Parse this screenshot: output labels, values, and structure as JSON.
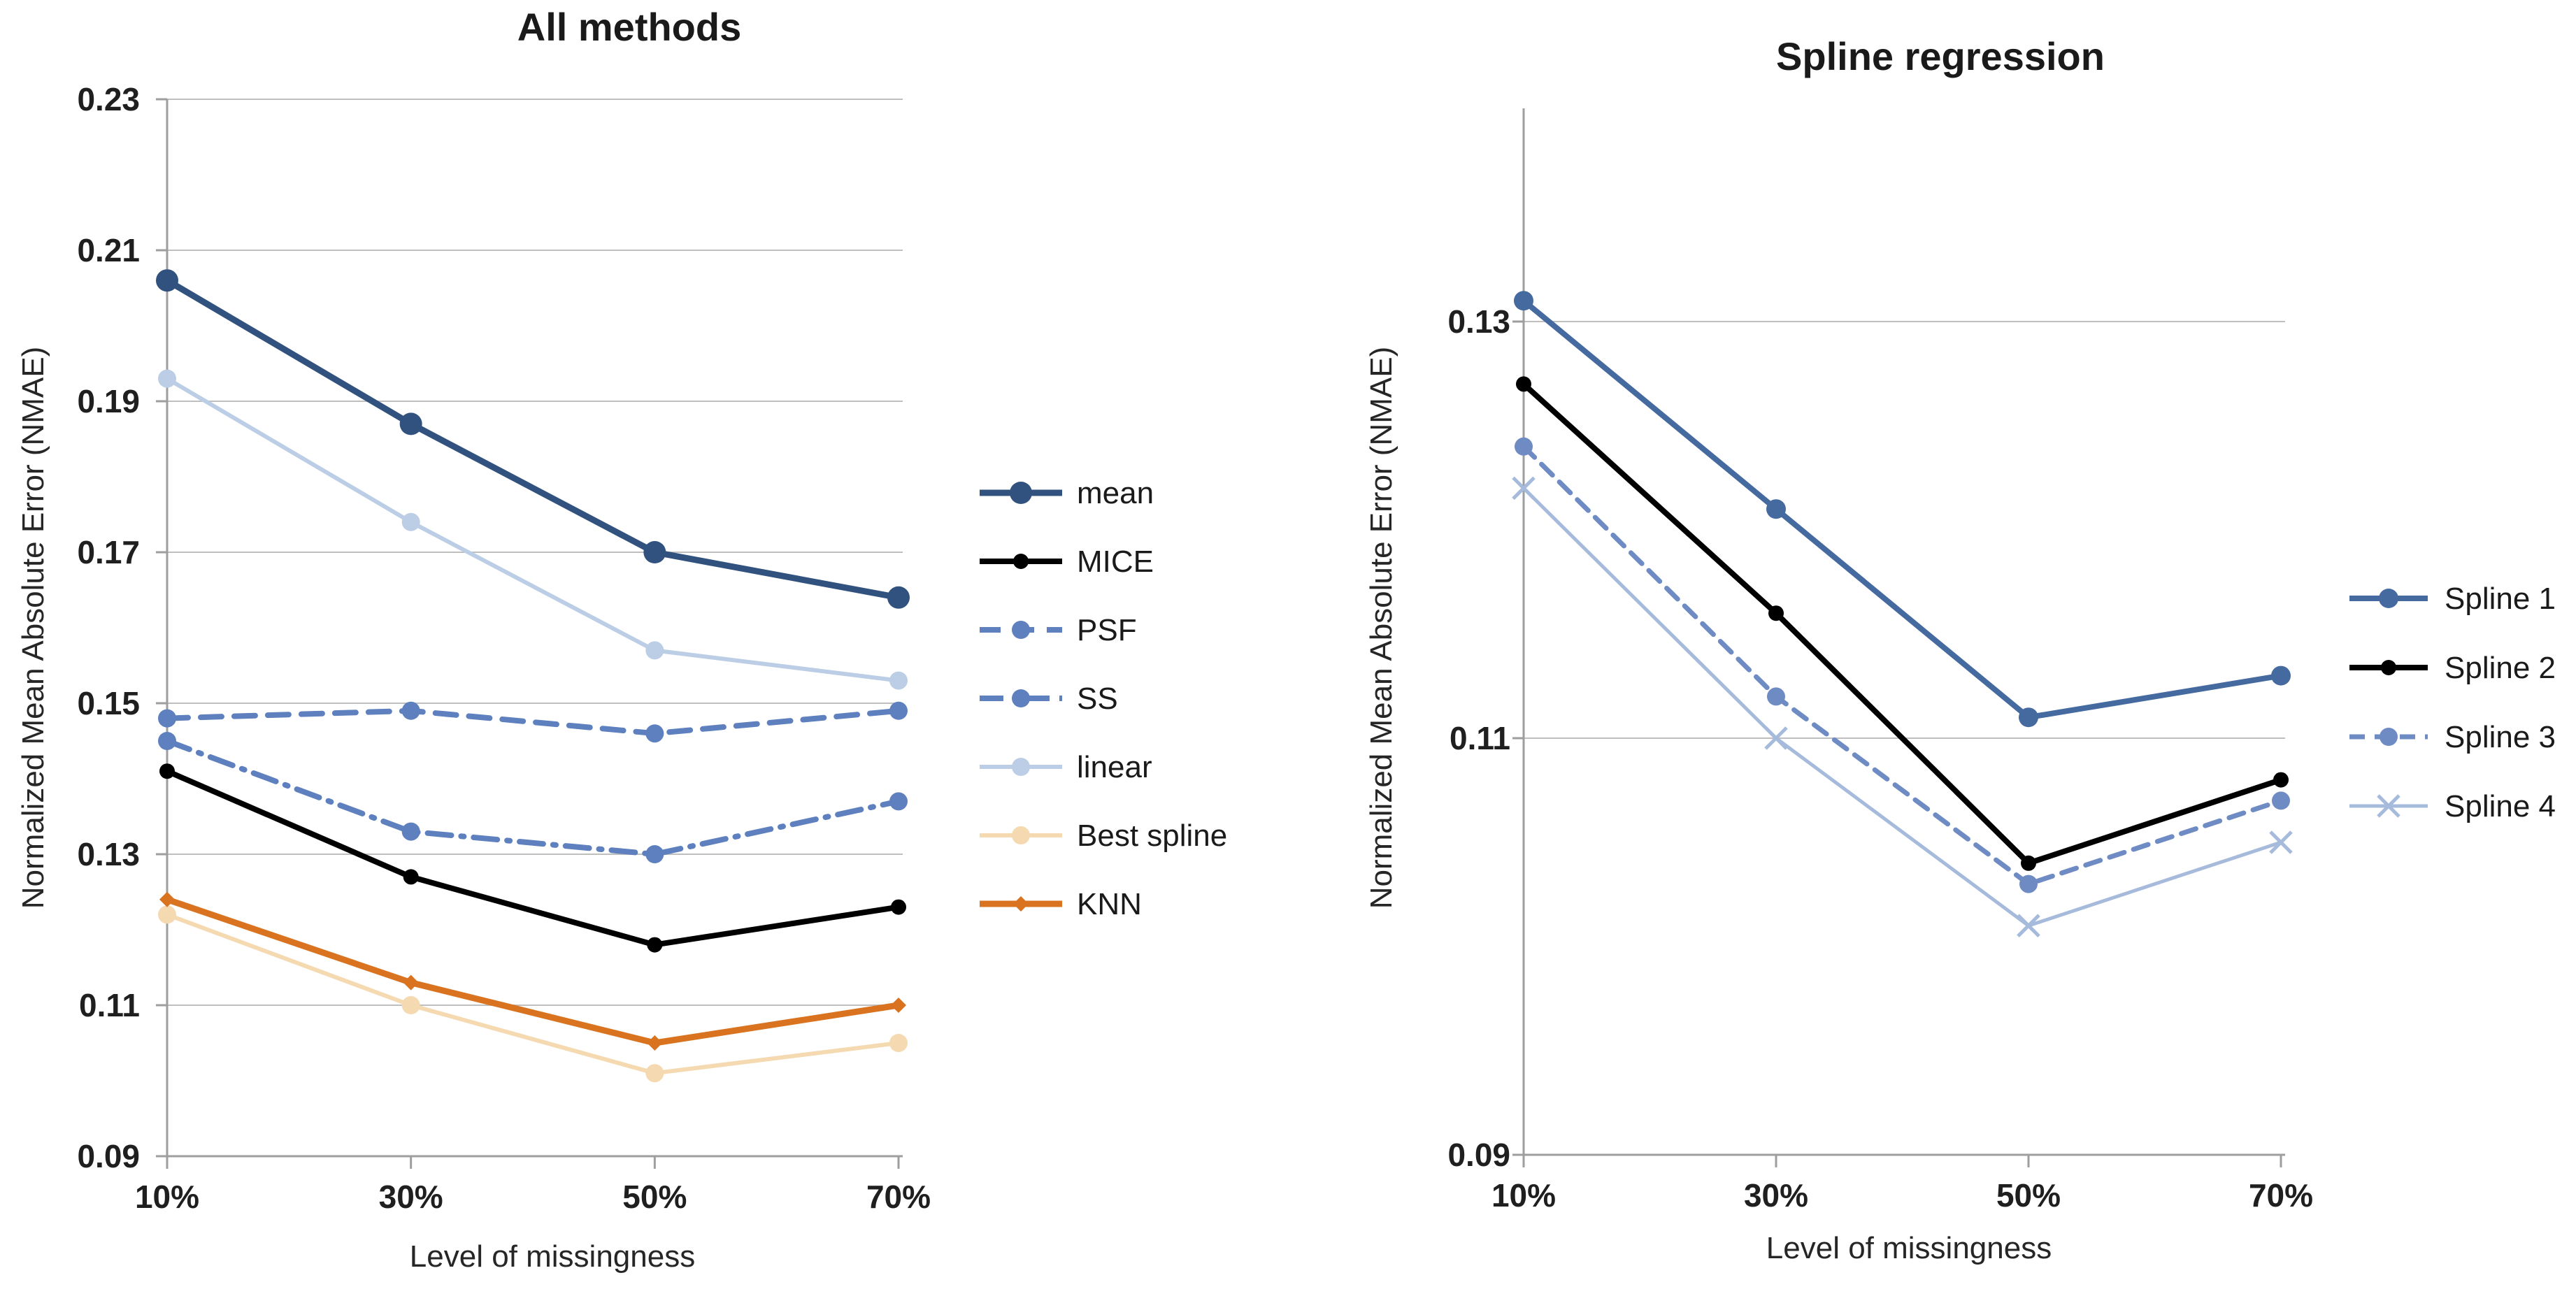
{
  "figure": {
    "background": "#ffffff",
    "grid_color": "#bfbfbf",
    "axis_color": "#9e9e9e"
  },
  "chart_data": [
    {
      "type": "line",
      "title": "All methods",
      "xlabel": "Level of missingness",
      "ylabel": "Normalized Mean Absolute Error (NMAE)",
      "categories": [
        "10%",
        "30%",
        "50%",
        "70%"
      ],
      "y_ticks": [
        "0.23",
        "0.21",
        "0.19",
        "0.17",
        "0.15",
        "0.13",
        "0.11",
        "0.09"
      ],
      "ylim": [
        0.09,
        0.23
      ],
      "grid": true,
      "legend_position": "right",
      "series": [
        {
          "name": "mean",
          "color": "#31527E",
          "dash": null,
          "marker": "circle",
          "marker_size": 16,
          "width": 9,
          "values": [
            0.206,
            0.187,
            0.17,
            0.164
          ]
        },
        {
          "name": "MICE",
          "color": "#000000",
          "dash": null,
          "marker": "circle",
          "marker_size": 11,
          "width": 8,
          "values": [
            0.141,
            0.127,
            0.118,
            0.123
          ]
        },
        {
          "name": "PSF",
          "color": "#5E80BE",
          "dash": "30 18",
          "marker": "circle",
          "marker_size": 13,
          "width": 8,
          "values": [
            0.148,
            0.149,
            0.146,
            0.149
          ]
        },
        {
          "name": "SS",
          "color": "#5E80BE",
          "dash": "34 14 4 14",
          "marker": "circle",
          "marker_size": 13,
          "width": 8,
          "values": [
            0.145,
            0.133,
            0.13,
            0.137
          ]
        },
        {
          "name": "linear",
          "color": "#BCCEE6",
          "dash": null,
          "marker": "circle",
          "marker_size": 13,
          "width": 6,
          "values": [
            0.193,
            0.174,
            0.157,
            0.153
          ]
        },
        {
          "name": "Best spline",
          "color": "#F5D9B0",
          "dash": null,
          "marker": "circle",
          "marker_size": 13,
          "width": 6,
          "values": [
            0.122,
            0.11,
            0.101,
            0.105
          ]
        },
        {
          "name": "KNN",
          "color": "#D9731F",
          "dash": null,
          "marker": "diamond",
          "marker_size": 11,
          "width": 9,
          "values": [
            0.124,
            0.113,
            0.105,
            0.11
          ]
        }
      ]
    },
    {
      "type": "line",
      "title": "Spline regression",
      "xlabel": "Level of missingness",
      "ylabel": "Normalized Mean Absolute Error (NMAE)",
      "categories": [
        "10%",
        "30%",
        "50%",
        "70%"
      ],
      "y_ticks": [
        "0.13",
        "0.11",
        "0.09"
      ],
      "ylim": [
        0.09,
        0.1402
      ],
      "grid": true,
      "legend_position": "right",
      "series": [
        {
          "name": "Spline 1",
          "color": "#456A9F",
          "dash": null,
          "marker": "circle",
          "marker_size": 14,
          "width": 8,
          "values": [
            0.131,
            0.121,
            0.111,
            0.113
          ]
        },
        {
          "name": "Spline 2",
          "color": "#000000",
          "dash": null,
          "marker": "circle",
          "marker_size": 11,
          "width": 8,
          "values": [
            0.127,
            0.116,
            0.104,
            0.108
          ]
        },
        {
          "name": "Spline 3",
          "color": "#6E8BC3",
          "dash": "22 14",
          "marker": "circle",
          "marker_size": 13,
          "width": 7,
          "values": [
            0.124,
            0.112,
            0.103,
            0.107
          ]
        },
        {
          "name": "Spline 4",
          "color": "#A6BBDC",
          "dash": null,
          "marker": "x",
          "marker_size": 15,
          "width": 5,
          "values": [
            0.122,
            0.11,
            0.101,
            0.105
          ]
        }
      ]
    }
  ]
}
